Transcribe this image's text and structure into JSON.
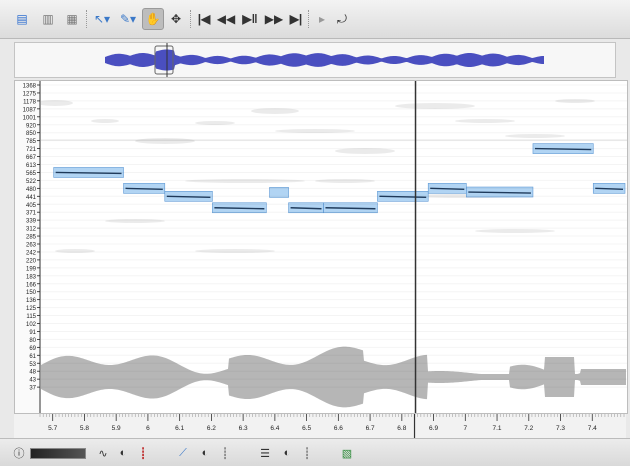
{
  "toolbar": {
    "icons": [
      "open-icon",
      "save-icon",
      "export-icon",
      "navigate-tool-icon",
      "edit-tool-icon",
      "hand-tool-icon",
      "move-tool-icon",
      "rewind-start-icon",
      "rewind-icon",
      "play-pause-icon",
      "fast-forward-icon",
      "fast-forward-end-icon",
      "record-icon",
      "loop-icon"
    ]
  },
  "pitch_axis": {
    "ticks": [
      "1368",
      "1275",
      "1178",
      "1087",
      "1001",
      "920",
      "850",
      "785",
      "721",
      "667",
      "613",
      "565",
      "522",
      "480",
      "441",
      "405",
      "371",
      "339",
      "312",
      "285",
      "263",
      "242",
      "220",
      "199",
      "183",
      "166",
      "150",
      "136",
      "125",
      "115",
      "102",
      "91",
      "80",
      "69",
      "61",
      "53",
      "48",
      "43",
      "37"
    ]
  },
  "time_axis": {
    "ticks": [
      "5.7",
      "5.8",
      "5.9",
      "6",
      "6.1",
      "6.2",
      "6.3",
      "6.4",
      "6.5",
      "6.6",
      "6.7",
      "6.8",
      "6.9",
      "7",
      "7.1",
      "7.2",
      "7.3",
      "7.4"
    ]
  },
  "notes": [
    {
      "start": 5.7,
      "end": 5.92,
      "pitch": 565
    },
    {
      "start": 5.92,
      "end": 6.05,
      "pitch": 480
    },
    {
      "start": 6.05,
      "end": 6.2,
      "pitch": 441
    },
    {
      "start": 6.2,
      "end": 6.37,
      "pitch": 390
    },
    {
      "start": 6.38,
      "end": 6.44,
      "pitch": 460
    },
    {
      "start": 6.44,
      "end": 6.55,
      "pitch": 390
    },
    {
      "start": 6.55,
      "end": 6.72,
      "pitch": 390
    },
    {
      "start": 6.72,
      "end": 6.88,
      "pitch": 441
    },
    {
      "start": 6.88,
      "end": 7.0,
      "pitch": 480
    },
    {
      "start": 7.0,
      "end": 7.21,
      "pitch": 462
    },
    {
      "start": 7.21,
      "end": 7.4,
      "pitch": 721
    },
    {
      "start": 7.4,
      "end": 7.5,
      "pitch": 480
    }
  ],
  "playhead_time": 6.84,
  "colors": {
    "note_fill": "#a9d0f2",
    "note_stroke": "#4f8fd0",
    "pitch_track": "#1f3b5c",
    "overview_wave": "#4a4fc0",
    "waveform": "#a9a9a9",
    "playhead": "#333333"
  },
  "bottombar": {
    "icons": [
      "info-icon",
      "volume-slider",
      "waveform-layer-icon",
      "layer-toggle-icon",
      "level-meter-icon",
      "pitch-layer-icon",
      "pitch-toggle-icon",
      "pitch-meter-icon",
      "notes-layer-icon",
      "notes-toggle-icon",
      "notes-meter-icon",
      "spectrogram-layer-icon"
    ]
  }
}
